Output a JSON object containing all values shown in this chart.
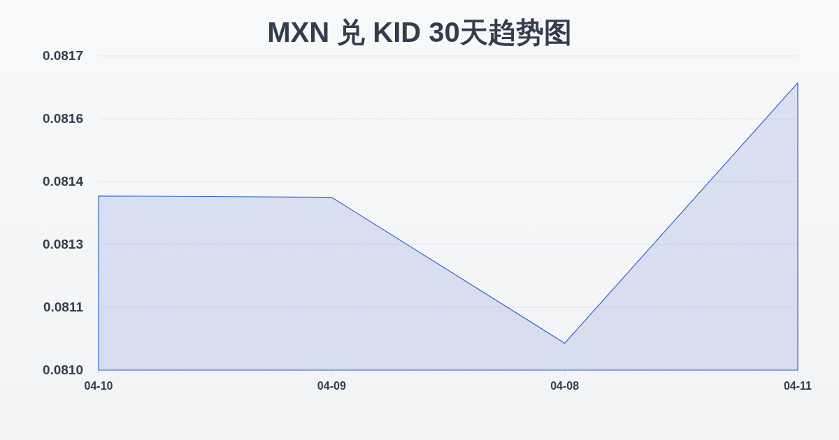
{
  "chart_data": {
    "type": "area",
    "title": "MXN 兑 KID 30天趋势图",
    "categories": [
      "04-10",
      "04-09",
      "04-08",
      "04-11"
    ],
    "series": [
      {
        "color": "#3461c9",
        "values": [
          0.081388,
          0.081385,
          0.08106,
          0.08164
        ]
      }
    ],
    "ylim": [
      0.081,
      0.0817
    ],
    "yticks": [
      {
        "value": 0.081,
        "label": "0.0810"
      },
      {
        "value": 0.08114,
        "label": "0.0811"
      },
      {
        "value": 0.08128,
        "label": "0.0813"
      },
      {
        "value": 0.08142,
        "label": "0.0814"
      },
      {
        "value": 0.08156,
        "label": "0.0816"
      },
      0.0817
    ],
    "grid": "y"
  }
}
